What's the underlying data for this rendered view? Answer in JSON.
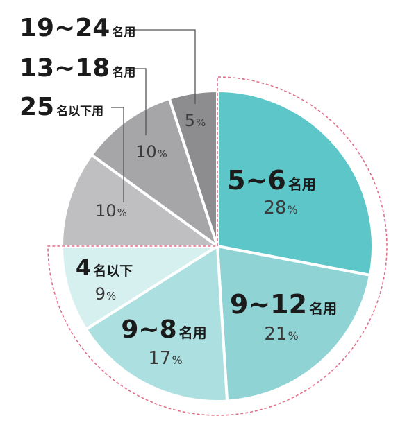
{
  "chart_data": {
    "type": "pie",
    "slices": [
      {
        "num": "5~6",
        "unit": "名用",
        "pct_num": "28",
        "pct_sign": "%",
        "value": 28,
        "color": "#5cc6c8"
      },
      {
        "num": "9~12",
        "unit": "名用",
        "pct_num": "21",
        "pct_sign": "%",
        "value": 21,
        "color": "#8fd3d5"
      },
      {
        "num": "9~8",
        "unit": "名用",
        "pct_num": "17",
        "pct_sign": "%",
        "value": 17,
        "color": "#acdfe0"
      },
      {
        "num": "4",
        "unit": "名以下",
        "pct_num": "9",
        "pct_sign": "%",
        "value": 9,
        "color": "#d6efef"
      },
      {
        "num": "25",
        "unit": "名以下用",
        "pct_num": "10",
        "pct_sign": "%",
        "value": 10,
        "color": "#bfbfc1"
      },
      {
        "num": "13~18",
        "unit": "名用",
        "pct_num": "10",
        "pct_sign": "%",
        "value": 10,
        "color": "#a6a6a9"
      },
      {
        "num": "19~24",
        "unit": "名用",
        "pct_num": "5",
        "pct_sign": "%",
        "value": 5,
        "color": "#8d8d90"
      }
    ],
    "highlight_color": "#e0708a"
  }
}
